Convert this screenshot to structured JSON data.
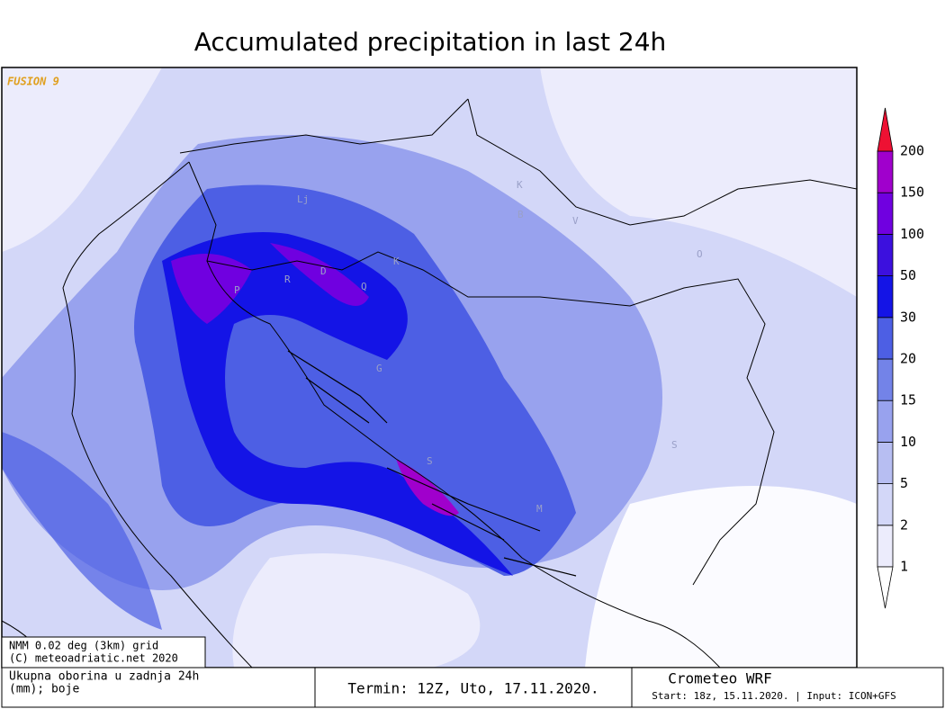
{
  "title": "Accumulated precipitation in last 24h",
  "watermark": "FUSION 9",
  "city_labels": [
    "Lj",
    "P",
    "R",
    "D",
    "K",
    "Q",
    "G",
    "S",
    "K",
    "B",
    "V",
    "O",
    "S",
    "M"
  ],
  "colorbar": {
    "levels": [
      1,
      2,
      5,
      10,
      15,
      20,
      30,
      50,
      100,
      150,
      200
    ],
    "band_colors": [
      "#ececfc",
      "#d3d7f8",
      "#b7bef2",
      "#98a2ee",
      "#7383e8",
      "#4d5fe4",
      "#1414e6",
      "#3c10de",
      "#7000e0",
      "#a000cc"
    ],
    "under_color": "#ffffff",
    "over_color": "#ee1133"
  },
  "grid_box": {
    "line1": "NMM 0.02 deg (3km) grid",
    "line2": "(C) meteoadriatic.net 2020"
  },
  "footer": {
    "description_line1": "Ukupna oborina u zadnja 24h",
    "description_line2": "(mm); boje",
    "termin": "Termin: 12Z, Uto, 17.11.2020.",
    "model": "Crometeo WRF",
    "start": "Start: 18z, 15.11.2020. | Input: ICON+GFS"
  }
}
